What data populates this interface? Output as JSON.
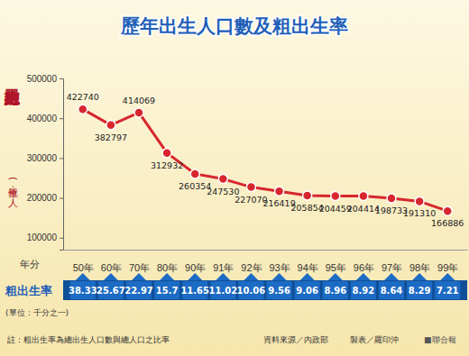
{
  "chart_data": {
    "type": "line",
    "title": "歷年出生人口數及粗出生率",
    "ylabel": "總出生人口數",
    "ylabel_unit": "(單位：人)",
    "xlabel": "年分",
    "categories": [
      "50年",
      "60年",
      "70年",
      "80年",
      "90年",
      "91年",
      "92年",
      "93年",
      "94年",
      "95年",
      "96年",
      "97年",
      "98年",
      "99年"
    ],
    "values": [
      422740,
      382797,
      414069,
      312932,
      260354,
      247530,
      227070,
      216419,
      205854,
      204459,
      204414,
      198733,
      191310,
      166886
    ],
    "color": "#d7262e",
    "marker": "circle",
    "data_labels": true,
    "grid": false,
    "ylim": [
      70000,
      500000
    ],
    "yticks": [
      100000,
      200000,
      300000,
      400000,
      500000
    ],
    "rate": {
      "label": "粗出生率",
      "unit": "(單位：千分之一)",
      "values": [
        38.33,
        25.67,
        22.97,
        15.7,
        11.65,
        11.02,
        10.06,
        9.56,
        9.06,
        8.96,
        8.92,
        8.64,
        8.29,
        7.21
      ],
      "color": "#1c6bc4"
    },
    "note": "註：粗出生率為總出生人口數與總人口之比率",
    "source": "資料來源／內政部",
    "credit": "製表／羅印沖",
    "publisher": "■聯合報"
  }
}
